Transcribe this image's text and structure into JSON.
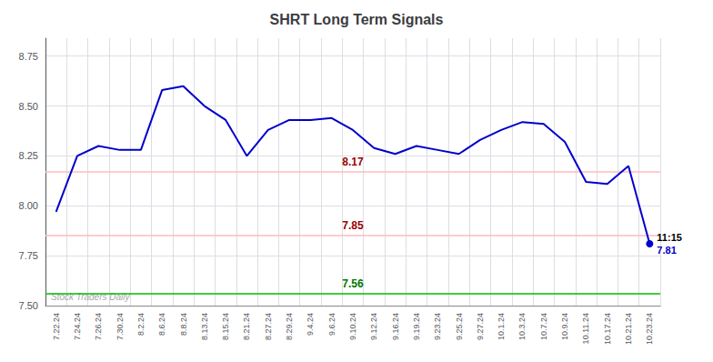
{
  "chart_data": {
    "type": "line",
    "title": "SHRT Long Term Signals",
    "categories": [
      "7.22.24",
      "7.24.24",
      "7.26.24",
      "7.30.24",
      "8.2.24",
      "8.6.24",
      "8.8.24",
      "8.13.24",
      "8.15.24",
      "8.21.24",
      "8.27.24",
      "8.29.24",
      "9.4.24",
      "9.6.24",
      "9.10.24",
      "9.12.24",
      "9.16.24",
      "9.19.24",
      "9.23.24",
      "9.25.24",
      "9.27.24",
      "10.1.24",
      "10.3.24",
      "10.7.24",
      "10.9.24",
      "10.11.24",
      "10.17.24",
      "10.21.24",
      "10.23.24"
    ],
    "values": [
      7.97,
      8.25,
      8.3,
      8.28,
      8.28,
      8.58,
      8.6,
      8.5,
      8.43,
      8.25,
      8.38,
      8.43,
      8.43,
      8.44,
      8.38,
      8.29,
      8.26,
      8.3,
      8.28,
      8.26,
      8.33,
      8.38,
      8.42,
      8.41,
      8.32,
      8.12,
      8.11,
      8.2,
      7.81
    ],
    "color": "#0000cc",
    "marker": "circle",
    "hlines": [
      {
        "value": 8.17,
        "color": "#ffbbbb",
        "label": "8.17",
        "label_color": "#990000"
      },
      {
        "value": 7.85,
        "color": "#ffbbbb",
        "label": "7.85",
        "label_color": "#990000"
      },
      {
        "value": 7.56,
        "color": "#00bb00",
        "label": "7.56",
        "label_color": "#007700"
      },
      {
        "value": 7.505,
        "color": "#888888"
      }
    ],
    "annotations": [
      {
        "text": "Stock Traders Daily",
        "color": "#aaaaaa"
      },
      {
        "text": "11:15",
        "color": "#000000"
      },
      {
        "text": "7.81",
        "color": "#0000cc"
      }
    ],
    "ylim": [
      7.5,
      8.84
    ],
    "yticks": [
      {
        "value": 7.5,
        "label": "7.50"
      },
      7.75,
      {
        "value": 8.0,
        "label": "8.00"
      },
      8.25,
      {
        "value": 8.5,
        "label": "8.50"
      },
      8.75
    ],
    "grid": true
  }
}
